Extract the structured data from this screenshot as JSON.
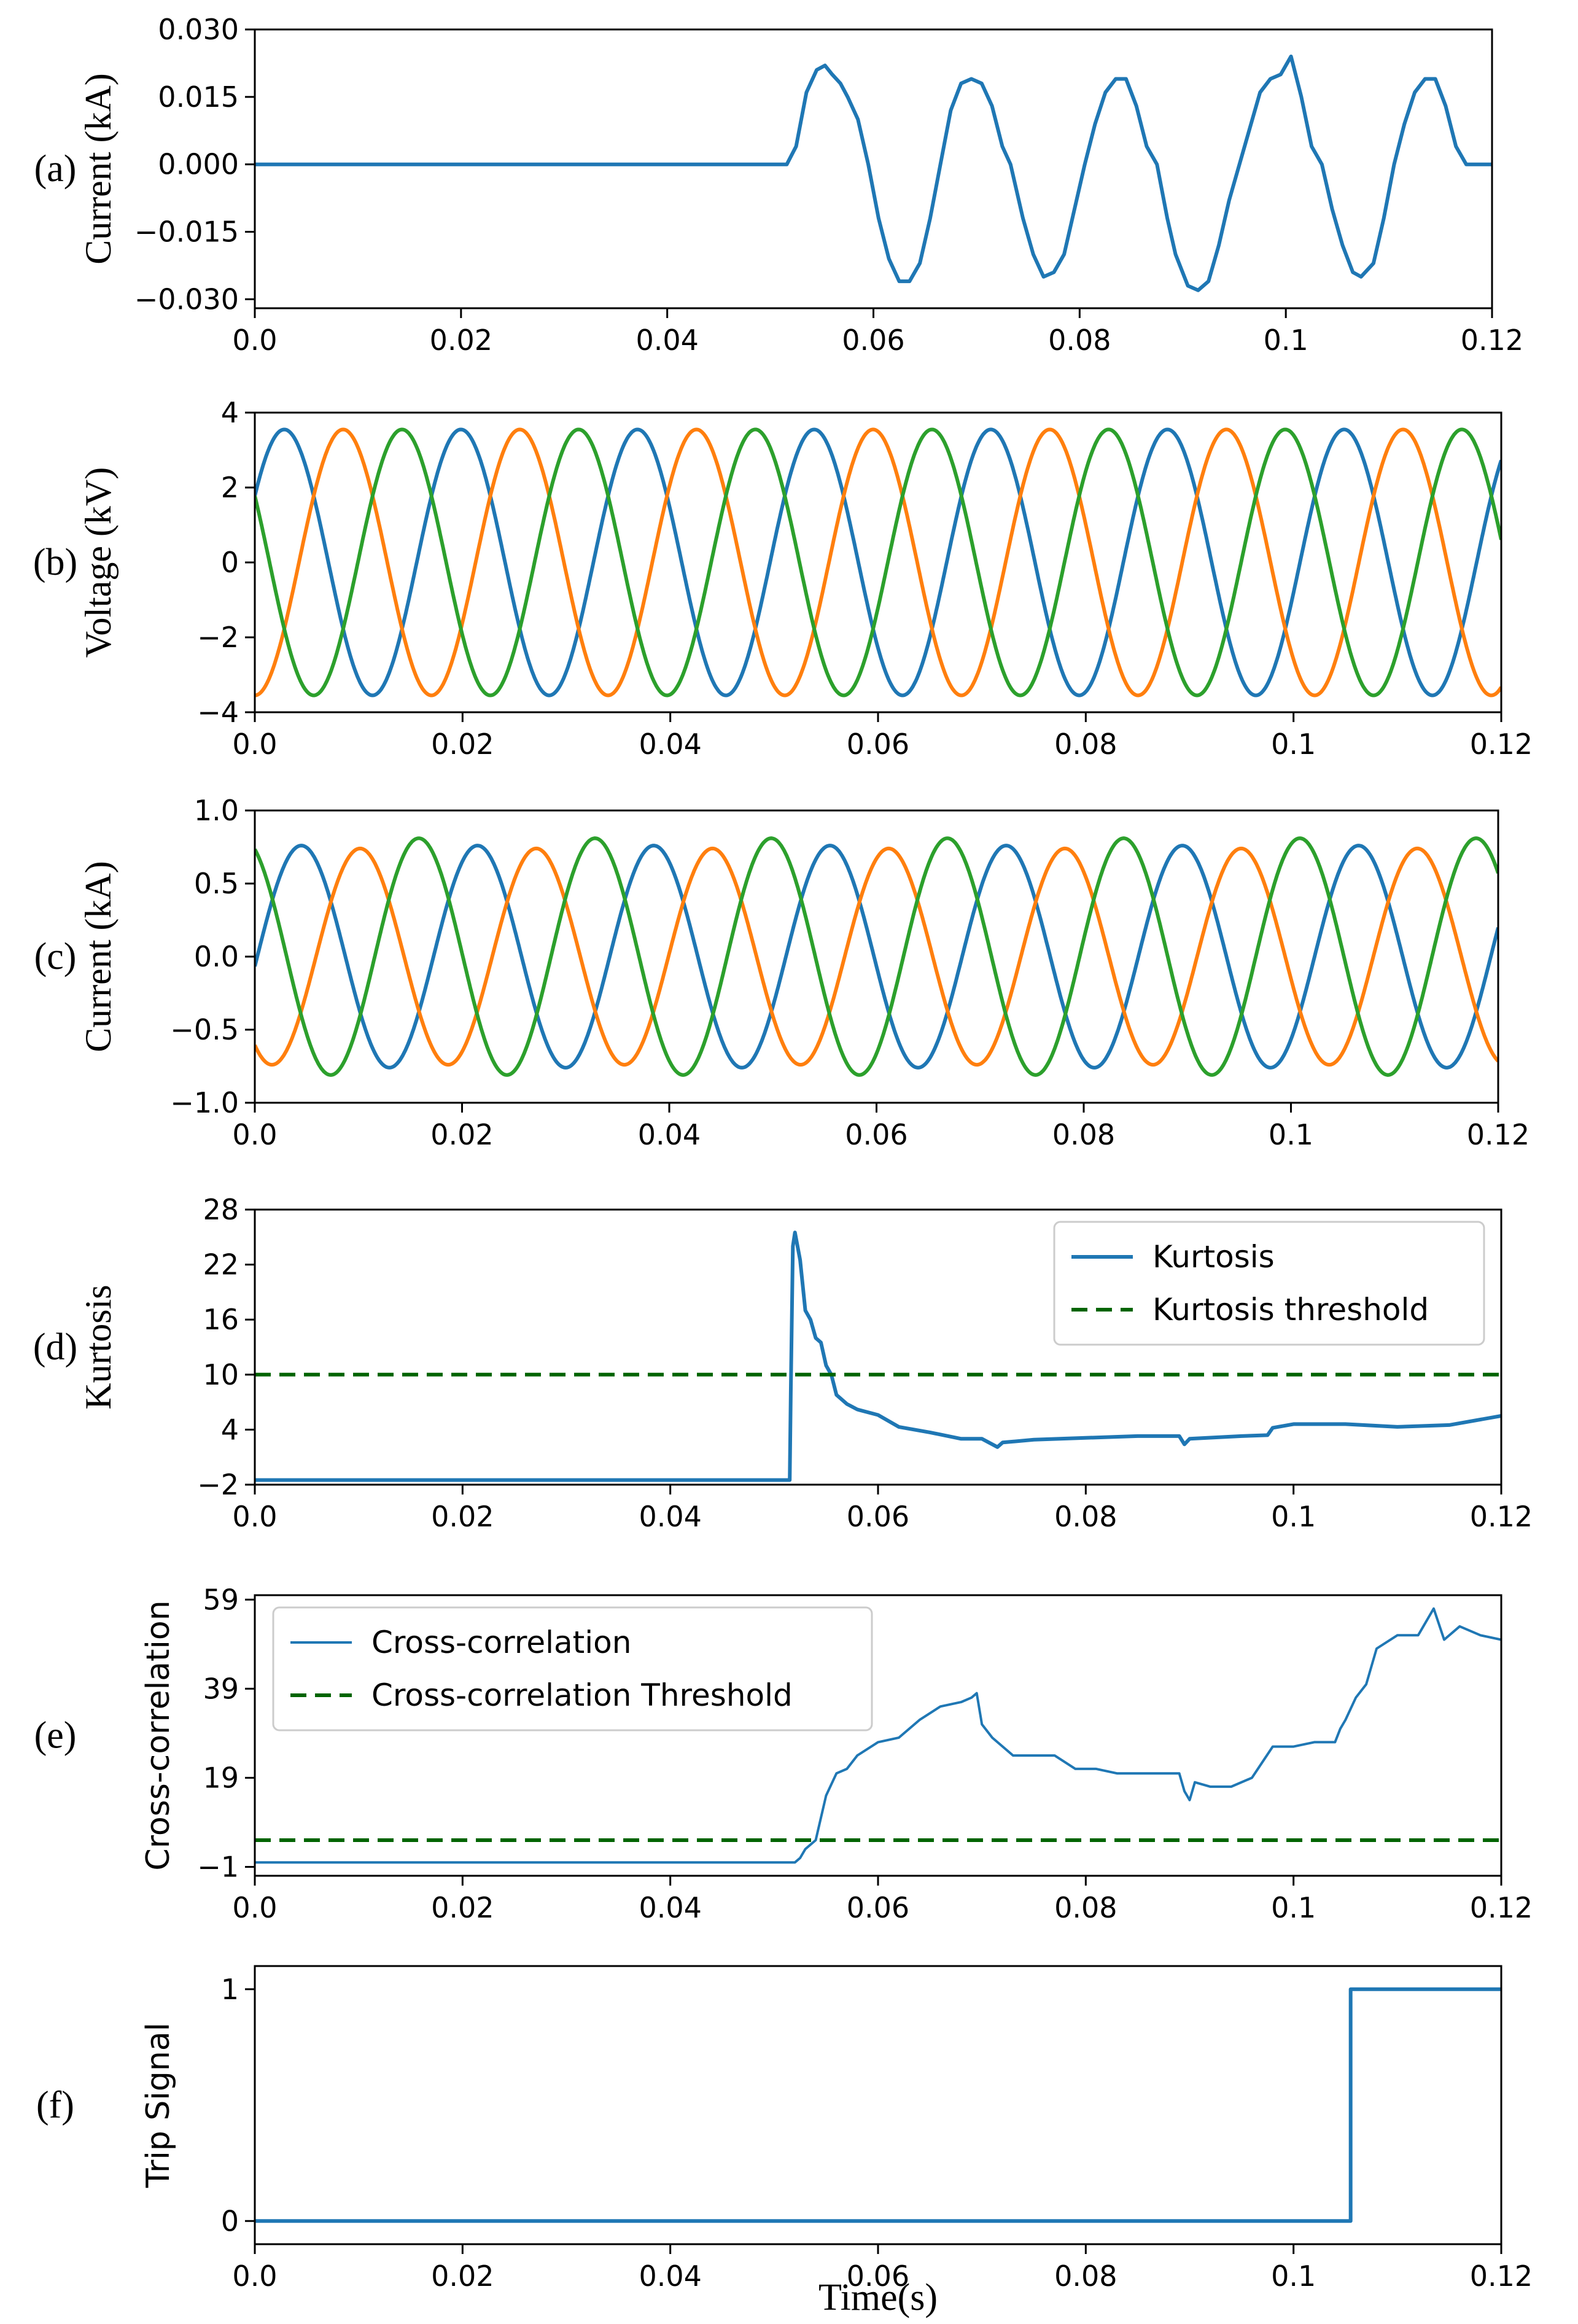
{
  "figure": {
    "xlabel": "Time(s)"
  },
  "chart_data": [
    {
      "type": "line",
      "panel_tag": "(a)",
      "ylabel": "Current (kA)",
      "ylabel_font": "serif",
      "xlim": [
        0,
        0.12
      ],
      "ylim": [
        -0.032,
        0.03
      ],
      "xticks": [
        0,
        0.02,
        0.04,
        0.06,
        0.08,
        0.1,
        0.12
      ],
      "xtick_labels": [
        "0.0",
        "0.02",
        "0.04",
        "0.06",
        "0.08",
        "0.1",
        "0.12"
      ],
      "yticks": [
        -0.03,
        -0.015,
        0,
        0.015,
        0.03
      ],
      "ytick_labels": [
        "−0.030",
        "−0.015",
        "0.000",
        "0.015",
        "0.030"
      ],
      "grid": false,
      "legend": null,
      "series": [
        {
          "color": "#1f77b4",
          "style": "solid",
          "x": [
            0,
            0.0516,
            0.0525,
            0.0535,
            0.0545,
            0.0553,
            0.056,
            0.0568,
            0.0575,
            0.0585,
            0.0595,
            0.0605,
            0.0615,
            0.0625,
            0.0635,
            0.0645,
            0.0655,
            0.0665,
            0.0675,
            0.0685,
            0.0695,
            0.0705,
            0.0715,
            0.0725,
            0.0733,
            0.0745,
            0.0755,
            0.0765,
            0.0775,
            0.0785,
            0.0795,
            0.0805,
            0.0815,
            0.0825,
            0.0835,
            0.0845,
            0.0855,
            0.0865,
            0.0875,
            0.0885,
            0.0893,
            0.0905,
            0.0915,
            0.0925,
            0.0935,
            0.0945,
            0.0955,
            0.0965,
            0.0975,
            0.0985,
            0.0995,
            0.1005,
            0.1015,
            0.1025,
            0.1035,
            0.1045,
            0.1055,
            0.1065,
            0.1073,
            0.1085,
            0.1095,
            0.1105,
            0.1115,
            0.1125,
            0.1135,
            0.1145,
            0.1155,
            0.1165,
            0.1175,
            0.1185,
            0.12
          ],
          "y": [
            0,
            0,
            0.004,
            0.016,
            0.021,
            0.022,
            0.02,
            0.018,
            0.015,
            0.01,
            0.0,
            -0.012,
            -0.021,
            -0.026,
            -0.026,
            -0.022,
            -0.012,
            0.0,
            0.012,
            0.018,
            0.019,
            0.018,
            0.013,
            0.004,
            0.0,
            -0.012,
            -0.02,
            -0.025,
            -0.024,
            -0.02,
            -0.01,
            0.0,
            0.009,
            0.016,
            0.019,
            0.019,
            0.013,
            0.004,
            0.0,
            -0.012,
            -0.02,
            -0.027,
            -0.028,
            -0.026,
            -0.018,
            -0.008,
            0.0,
            0.008,
            0.016,
            0.019,
            0.02,
            0.024,
            0.015,
            0.004,
            0.0,
            -0.01,
            -0.018,
            -0.024,
            -0.025,
            -0.022,
            -0.012,
            0.0,
            0.009,
            0.016,
            0.019,
            0.019,
            0.013,
            0.004,
            0.0,
            0.0,
            0.0
          ]
        }
      ]
    },
    {
      "type": "line",
      "panel_tag": "(b)",
      "ylabel": "Voltage (kV)",
      "ylabel_font": "serif",
      "xlim": [
        0,
        0.12
      ],
      "ylim": [
        -4,
        4
      ],
      "xticks": [
        0,
        0.02,
        0.04,
        0.06,
        0.08,
        0.1,
        0.12
      ],
      "xtick_labels": [
        "0.0",
        "0.02",
        "0.04",
        "0.06",
        "0.08",
        "0.1",
        "0.12"
      ],
      "yticks": [
        -4,
        -2,
        0,
        2,
        4
      ],
      "ytick_labels": [
        "−4",
        "−2",
        "0",
        "2",
        "4"
      ],
      "grid": false,
      "legend": null,
      "sinusoids": [
        {
          "color": "#1f77b4",
          "amplitude": 3.55,
          "frequency": 58.8,
          "phase_deg": 30
        },
        {
          "color": "#ff7f0e",
          "amplitude": 3.55,
          "frequency": 58.8,
          "phase_deg": 270
        },
        {
          "color": "#2ca02c",
          "amplitude": 3.55,
          "frequency": 58.8,
          "phase_deg": 150
        }
      ]
    },
    {
      "type": "line",
      "panel_tag": "(c)",
      "ylabel": "Current (kA)",
      "ylabel_font": "serif",
      "xlim": [
        0,
        0.12
      ],
      "ylim": [
        -1.0,
        1.0
      ],
      "xticks": [
        0,
        0.02,
        0.04,
        0.06,
        0.08,
        0.1,
        0.12
      ],
      "xtick_labels": [
        "0.0",
        "0.02",
        "0.04",
        "0.06",
        "0.08",
        "0.1",
        "0.12"
      ],
      "yticks": [
        -1.0,
        -0.5,
        0,
        0.5,
        1.0
      ],
      "ytick_labels": [
        "−1.0",
        "−0.5",
        "0.0",
        "0.5",
        "1.0"
      ],
      "grid": false,
      "legend": null,
      "sinusoids": [
        {
          "color": "#1f77b4",
          "amplitude": 0.76,
          "frequency": 58.8,
          "phase_deg": 355
        },
        {
          "color": "#ff7f0e",
          "amplitude": 0.74,
          "frequency": 58.8,
          "phase_deg": 235
        },
        {
          "color": "#2ca02c",
          "amplitude": 0.81,
          "frequency": 58.8,
          "phase_deg": 115
        }
      ]
    },
    {
      "type": "line",
      "panel_tag": "(d)",
      "ylabel": "Kurtosis",
      "ylabel_font": "serif",
      "xlim": [
        0,
        0.12
      ],
      "ylim": [
        -2,
        28
      ],
      "xticks": [
        0,
        0.02,
        0.04,
        0.06,
        0.08,
        0.1,
        0.12
      ],
      "xtick_labels": [
        "0.0",
        "0.02",
        "0.04",
        "0.06",
        "0.08",
        "0.1",
        "0.12"
      ],
      "yticks": [
        -2,
        4,
        10,
        16,
        22,
        28
      ],
      "ytick_labels": [
        "−2",
        "4",
        "10",
        "16",
        "22",
        "28"
      ],
      "grid": false,
      "legend": {
        "position": "upper-right",
        "entries": [
          "Kurtosis",
          "Kurtosis threshold"
        ]
      },
      "series": [
        {
          "name": "Kurtosis",
          "color": "#1f77b4",
          "style": "solid",
          "x": [
            0,
            0.0515,
            0.0516,
            0.0518,
            0.052,
            0.0525,
            0.053,
            0.0535,
            0.054,
            0.0545,
            0.055,
            0.0555,
            0.056,
            0.057,
            0.058,
            0.06,
            0.062,
            0.065,
            0.068,
            0.07,
            0.0715,
            0.072,
            0.075,
            0.08,
            0.085,
            0.089,
            0.0895,
            0.09,
            0.095,
            0.0975,
            0.098,
            0.1,
            0.105,
            0.11,
            0.115,
            0.12
          ],
          "y": [
            -1.5,
            -1.5,
            8,
            24,
            25.5,
            22.5,
            17,
            16,
            14,
            13.5,
            11,
            10,
            7.8,
            6.8,
            6.2,
            5.6,
            4.3,
            3.7,
            3.0,
            3.0,
            2.1,
            2.6,
            2.9,
            3.1,
            3.3,
            3.3,
            2.4,
            3.0,
            3.3,
            3.4,
            4.2,
            4.6,
            4.6,
            4.3,
            4.5,
            5.5
          ]
        },
        {
          "name": "Kurtosis threshold",
          "color": "#006400",
          "style": "dashed",
          "x": [
            0,
            0.12
          ],
          "y": [
            10,
            10
          ]
        }
      ]
    },
    {
      "type": "line",
      "panel_tag": "(e)",
      "ylabel": "Cross-correlation",
      "ylabel_font": "sans",
      "xlim": [
        0,
        0.12
      ],
      "ylim": [
        -3,
        60
      ],
      "xticks": [
        0,
        0.02,
        0.04,
        0.06,
        0.08,
        0.1,
        0.12
      ],
      "xtick_labels": [
        "0.0",
        "0.02",
        "0.04",
        "0.06",
        "0.08",
        "0.1",
        "0.12"
      ],
      "yticks": [
        -1,
        19,
        39,
        59
      ],
      "ytick_labels": [
        "−1",
        "19",
        "39",
        "59"
      ],
      "grid": false,
      "legend": {
        "position": "upper-left",
        "entries": [
          "Cross-correlation",
          "Cross-correlation Threshold"
        ]
      },
      "series": [
        {
          "name": "Cross-correlation",
          "color": "#1f77b4",
          "style": "solid",
          "x": [
            0,
            0.052,
            0.0525,
            0.053,
            0.054,
            0.055,
            0.056,
            0.057,
            0.058,
            0.06,
            0.062,
            0.064,
            0.066,
            0.068,
            0.069,
            0.0695,
            0.07,
            0.071,
            0.073,
            0.075,
            0.077,
            0.079,
            0.081,
            0.083,
            0.085,
            0.087,
            0.089,
            0.0895,
            0.09,
            0.0905,
            0.092,
            0.094,
            0.096,
            0.098,
            0.1,
            0.102,
            0.104,
            0.1045,
            0.105,
            0.106,
            0.107,
            0.108,
            0.11,
            0.112,
            0.1135,
            0.1145,
            0.116,
            0.118,
            0.12
          ],
          "y": [
            0,
            0,
            1,
            3,
            5,
            15,
            20,
            21,
            24,
            27,
            28,
            32,
            35,
            36,
            37,
            38,
            31,
            28,
            24,
            24,
            24,
            21,
            21,
            20,
            20,
            20,
            20,
            16,
            14,
            18,
            17,
            17,
            19,
            26,
            26,
            27,
            27,
            30,
            32,
            37,
            40,
            48,
            51,
            51,
            57,
            50,
            53,
            51,
            50
          ]
        },
        {
          "name": "Cross-correlation Threshold",
          "color": "#006400",
          "style": "dashed",
          "x": [
            0,
            0.12
          ],
          "y": [
            5,
            5
          ]
        }
      ]
    },
    {
      "type": "line",
      "panel_tag": "(f)",
      "ylabel": "Trip Signal",
      "ylabel_font": "sans",
      "xlim": [
        0,
        0.12
      ],
      "ylim": [
        -0.1,
        1.1
      ],
      "xticks": [
        0,
        0.02,
        0.04,
        0.06,
        0.08,
        0.1,
        0.12
      ],
      "xtick_labels": [
        "0.0",
        "0.02",
        "0.04",
        "0.06",
        "0.08",
        "0.1",
        "0.12"
      ],
      "yticks": [
        0,
        1
      ],
      "ytick_labels": [
        "0",
        "1"
      ],
      "grid": false,
      "legend": null,
      "series": [
        {
          "color": "#1f77b4",
          "style": "solid",
          "x": [
            0,
            0.1055,
            0.1055,
            0.12
          ],
          "y": [
            0,
            0,
            1,
            1
          ]
        }
      ]
    }
  ]
}
